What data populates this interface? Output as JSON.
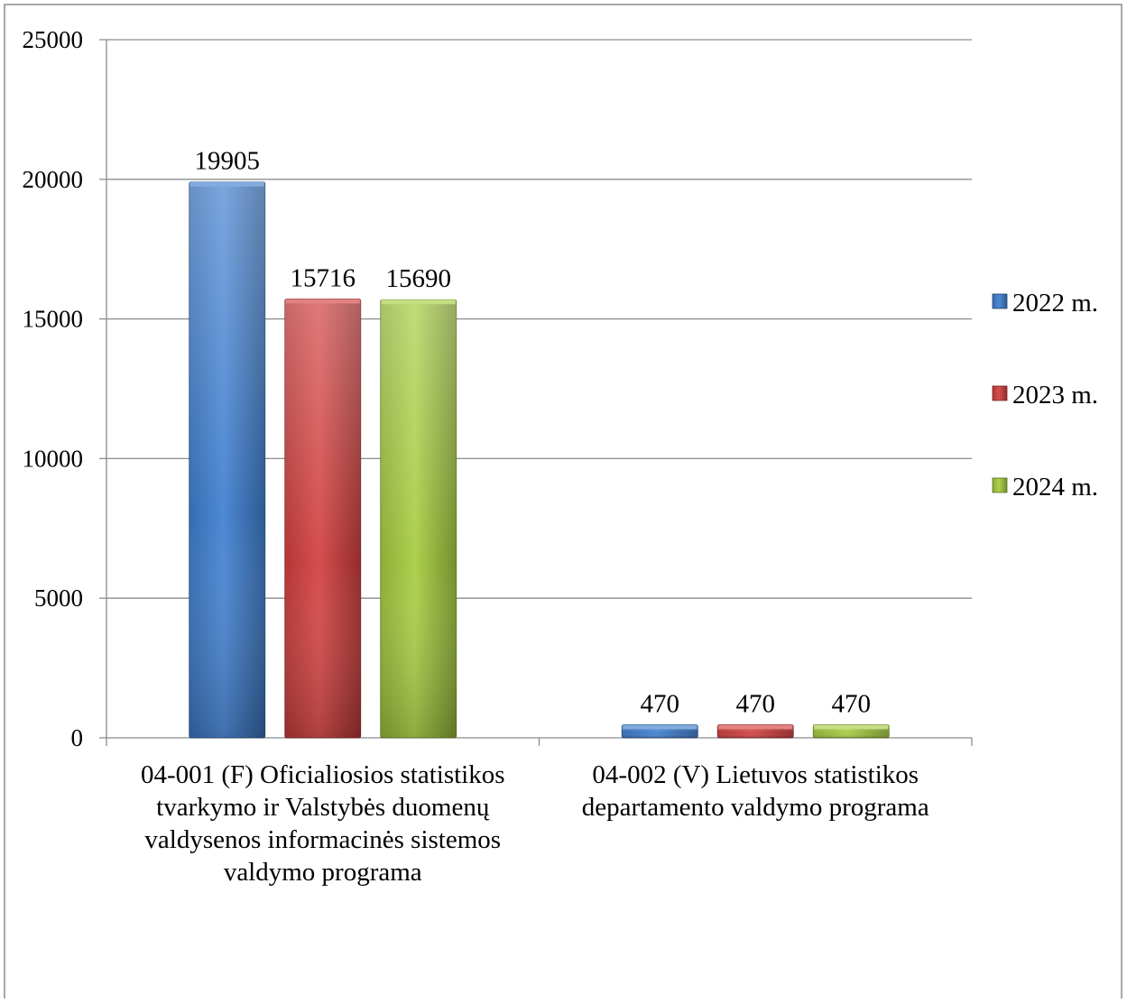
{
  "chart_data": {
    "type": "bar",
    "title": "",
    "xlabel": "",
    "ylabel": "",
    "ylim": [
      0,
      25000
    ],
    "yticks": [
      0,
      5000,
      10000,
      15000,
      20000,
      25000
    ],
    "grid": true,
    "legend_position": "right",
    "categories": [
      [
        "04-001 (F) Oficialiosios statistikos",
        "tvarkymo ir Valstybės duomenų",
        "valdysenos informacinės sistemos",
        "valdymo programa"
      ],
      [
        "04-002 (V) Lietuvos statistikos",
        "departamento valdymo programa"
      ]
    ],
    "series": [
      {
        "name": "2022 m.",
        "color": "#3f7fd0",
        "values": [
          19905,
          470
        ]
      },
      {
        "name": "2023 m.",
        "color": "#d23f3f",
        "values": [
          15716,
          470
        ]
      },
      {
        "name": "2024 m.",
        "color": "#a6cc3f",
        "values": [
          15690,
          470
        ]
      }
    ]
  }
}
